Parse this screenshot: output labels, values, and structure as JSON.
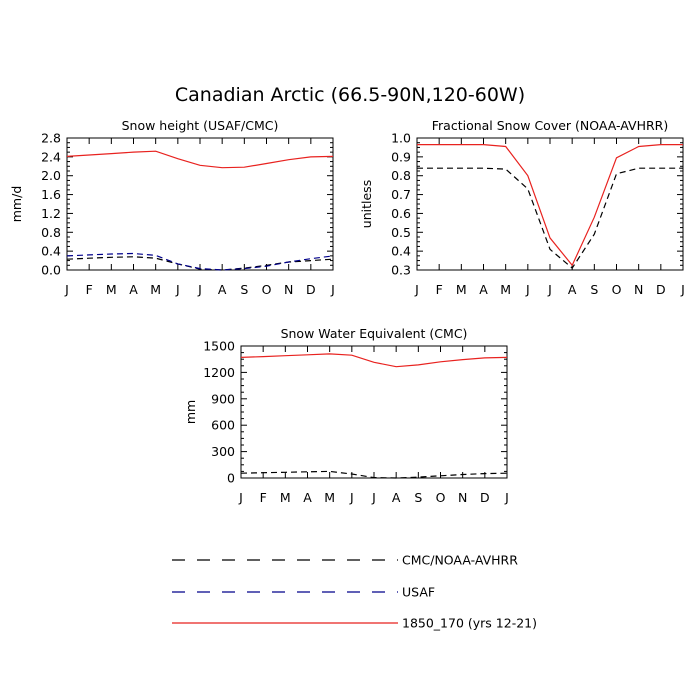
{
  "figure_title": "Canadian Arctic (66.5-90N,120-60W)",
  "legend": [
    {
      "label": "CMC/NOAA-AVHRR",
      "color": "#000000",
      "dash": "dashed"
    },
    {
      "label": "USAF",
      "color": "#00008b",
      "dash": "dashed"
    },
    {
      "label": "1850_170 (yrs 12-21)",
      "color": "#e8221f",
      "dash": "solid"
    }
  ],
  "chart_data": [
    {
      "type": "line",
      "title": "Snow height (USAF/CMC)",
      "xlabel": "",
      "ylabel": "mm/d",
      "categories": [
        "J",
        "F",
        "M",
        "A",
        "M",
        "J",
        "J",
        "A",
        "S",
        "O",
        "N",
        "D",
        "J"
      ],
      "ylim": [
        0.0,
        2.8
      ],
      "yticks": [
        "0.0",
        "0.4",
        "0.8",
        "1.2",
        "1.6",
        "2.0",
        "2.4",
        "2.8"
      ],
      "grid": false,
      "series": [
        {
          "name": "1850_170 (yrs 12-21)",
          "color": "#e8221f",
          "dash": "solid",
          "values": [
            2.41,
            2.44,
            2.47,
            2.5,
            2.52,
            2.36,
            2.22,
            2.17,
            2.18,
            2.26,
            2.34,
            2.4,
            2.41
          ]
        },
        {
          "name": "CMC/NOAA-AVHRR",
          "color": "#000000",
          "dash": "dashed",
          "values": [
            0.23,
            0.25,
            0.27,
            0.28,
            0.25,
            0.13,
            0.02,
            0.0,
            0.04,
            0.1,
            0.17,
            0.2,
            0.23
          ]
        },
        {
          "name": "USAF",
          "color": "#00008b",
          "dash": "dashed",
          "values": [
            0.3,
            0.32,
            0.34,
            0.35,
            0.31,
            0.13,
            0.03,
            0.0,
            0.03,
            0.08,
            0.17,
            0.24,
            0.3
          ]
        }
      ]
    },
    {
      "type": "line",
      "title": "Fractional Snow Cover (NOAA-AVHRR)",
      "xlabel": "",
      "ylabel": "unitless",
      "categories": [
        "J",
        "F",
        "M",
        "A",
        "M",
        "J",
        "J",
        "A",
        "S",
        "O",
        "N",
        "D",
        "J"
      ],
      "ylim": [
        0.3,
        1.0
      ],
      "yticks": [
        "0.3",
        "0.4",
        "0.5",
        "0.6",
        "0.7",
        "0.8",
        "0.9",
        "1.0"
      ],
      "grid": false,
      "series": [
        {
          "name": "1850_170 (yrs 12-21)",
          "color": "#e8221f",
          "dash": "solid",
          "values": [
            0.965,
            0.965,
            0.965,
            0.965,
            0.955,
            0.8,
            0.47,
            0.325,
            0.58,
            0.895,
            0.955,
            0.965,
            0.965
          ]
        },
        {
          "name": "CMC/NOAA-AVHRR",
          "color": "#000000",
          "dash": "dashed",
          "values": [
            0.84,
            0.84,
            0.84,
            0.84,
            0.835,
            0.73,
            0.41,
            0.31,
            0.49,
            0.81,
            0.84,
            0.84,
            0.84
          ]
        }
      ]
    },
    {
      "type": "line",
      "title": "Snow Water Equivalent (CMC)",
      "xlabel": "",
      "ylabel": "mm",
      "categories": [
        "J",
        "F",
        "M",
        "A",
        "M",
        "J",
        "J",
        "A",
        "S",
        "O",
        "N",
        "D",
        "J"
      ],
      "ylim": [
        0,
        1500
      ],
      "yticks": [
        "0",
        "300",
        "600",
        "900",
        "1200",
        "1500"
      ],
      "grid": false,
      "series": [
        {
          "name": "1850_170 (yrs 12-21)",
          "color": "#e8221f",
          "dash": "solid",
          "values": [
            1370,
            1380,
            1390,
            1400,
            1410,
            1395,
            1315,
            1265,
            1285,
            1320,
            1345,
            1365,
            1370
          ]
        },
        {
          "name": "CMC/NOAA-AVHRR",
          "color": "#000000",
          "dash": "dashed",
          "values": [
            55,
            60,
            65,
            70,
            75,
            45,
            5,
            0,
            10,
            25,
            40,
            50,
            55
          ]
        }
      ]
    }
  ]
}
